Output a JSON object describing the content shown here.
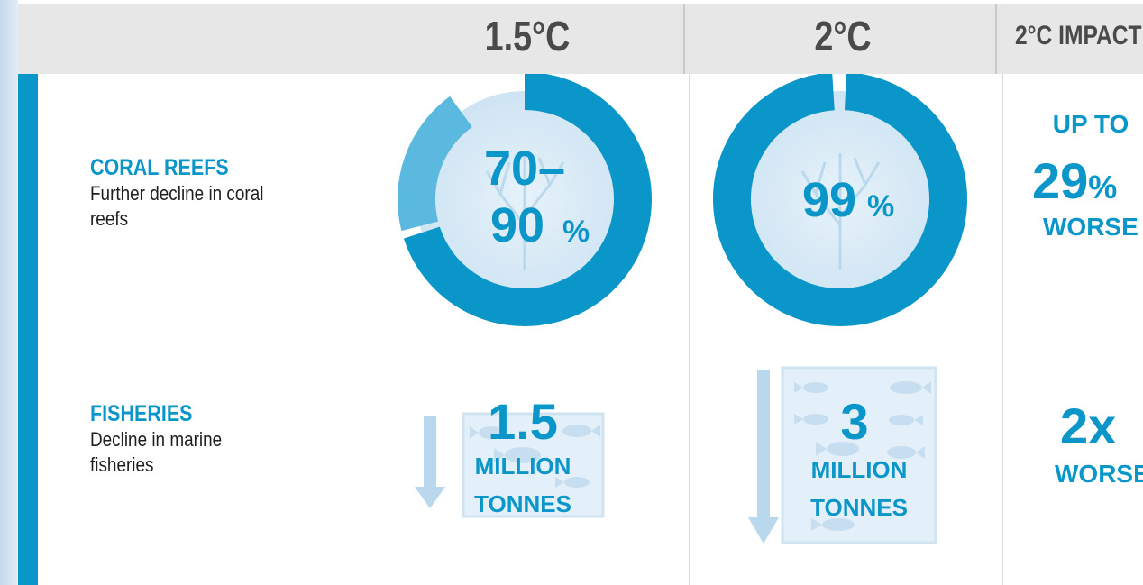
{
  "header": {
    "col1": "1.5°C",
    "col2": "2°C",
    "col3": "2°C IMPACT"
  },
  "rows": {
    "coral": {
      "title": "CORAL REEFS",
      "desc": "Further decline in coral reefs"
    },
    "fisheries": {
      "title": "FISHERIES",
      "desc": "Decline in marine fisheries"
    }
  },
  "chart_data": [
    {
      "type": "pie",
      "name": "coral-1.5C",
      "label_line1": "70–",
      "label_line2": "90",
      "unit": "%",
      "range_low": 70,
      "range_high": 90,
      "color": "#0a96c9",
      "range_color": "#5bb8de"
    },
    {
      "type": "pie",
      "name": "coral-2C",
      "label": "99",
      "unit": "%",
      "value": 99,
      "color": "#0a96c9"
    },
    {
      "type": "table",
      "name": "fisheries",
      "values": [
        {
          "scenario": "1.5°C",
          "number": "1.5",
          "unit_line1": "MILLION",
          "unit_line2": "TONNES"
        },
        {
          "scenario": "2°C",
          "number": "3",
          "unit_line1": "MILLION",
          "unit_line2": "TONNES"
        }
      ]
    }
  ],
  "impact": {
    "coral": {
      "line1": "UP TO",
      "value": "29",
      "unit": "%",
      "line3": "WORSE"
    },
    "fisheries": {
      "value": "2x",
      "line2": "WORSE"
    }
  },
  "colors": {
    "accent": "#0a96c9",
    "light": "#5bb8de",
    "header_bg": "#e7e7e7"
  },
  "icons": [
    "coral-icon",
    "fish-icon",
    "down-arrow-icon"
  ]
}
